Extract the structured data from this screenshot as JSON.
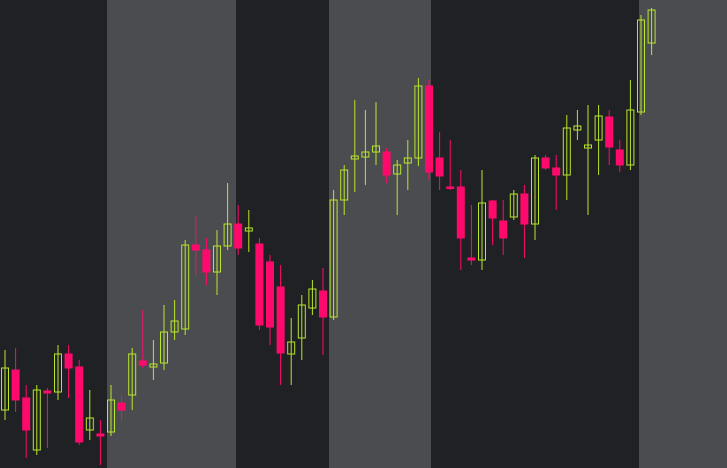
{
  "chart_data": {
    "type": "candlestick",
    "open": [
      58,
      98,
      70,
      18,
      77,
      76,
      114,
      101,
      38,
      34,
      36,
      65,
      73,
      107,
      101,
      105,
      136,
      139,
      223,
      218,
      196,
      222,
      244,
      237,
      224,
      206,
      181,
      114,
      130,
      160,
      177,
      151,
      268,
      309,
      311,
      316,
      316,
      294,
      305,
      310,
      382,
      310,
      281,
      281,
      210,
      208,
      267,
      247,
      251,
      274,
      244,
      310,
      300,
      293,
      338,
      320,
      328,
      351,
      318,
      303,
      356,
      425
    ],
    "high": [
      118,
      120,
      83,
      83,
      80,
      123,
      123,
      108,
      78,
      48,
      83,
      73,
      120,
      158,
      128,
      163,
      168,
      228,
      252,
      230,
      238,
      285,
      263,
      258,
      230,
      213,
      203,
      150,
      173,
      188,
      200,
      278,
      303,
      368,
      358,
      366,
      320,
      308,
      328,
      390,
      388,
      336,
      328,
      298,
      263,
      298,
      268,
      268,
      278,
      283,
      313,
      313,
      313,
      353,
      358,
      363,
      363,
      358,
      328,
      388,
      453,
      460
    ],
    "low": [
      48,
      56,
      10,
      13,
      20,
      68,
      70,
      23,
      28,
      3,
      32,
      48,
      58,
      100,
      88,
      98,
      128,
      133,
      193,
      183,
      173,
      218,
      213,
      216,
      138,
      123,
      83,
      83,
      108,
      153,
      113,
      148,
      253,
      276,
      283,
      303,
      285,
      253,
      278,
      302,
      288,
      278,
      278,
      198,
      203,
      198,
      223,
      213,
      248,
      210,
      228,
      298,
      258,
      268,
      328,
      253,
      293,
      303,
      296,
      298,
      353,
      413
    ],
    "close": [
      100,
      68,
      38,
      78,
      75,
      114,
      100,
      26,
      50,
      32,
      68,
      58,
      114,
      103,
      104,
      136,
      147,
      223,
      218,
      196,
      222,
      244,
      220,
      240,
      143,
      141,
      115,
      126,
      163,
      179,
      151,
      268,
      298,
      312,
      316,
      322,
      293,
      303,
      310,
      382,
      296,
      292,
      280,
      230,
      208,
      265,
      250,
      230,
      274,
      244,
      310,
      300,
      293,
      340,
      342,
      323,
      352,
      321,
      303,
      358,
      448,
      458
    ],
    "up_color": "#b8e62a",
    "down_color": "#ff0a6c",
    "ylim": [
      0,
      468
    ]
  }
}
